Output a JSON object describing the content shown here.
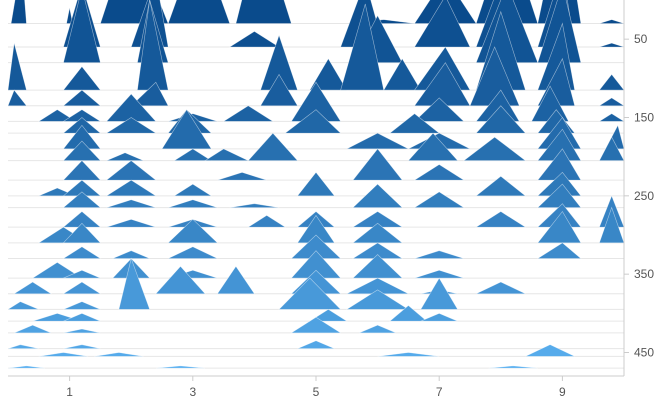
{
  "chart_data": {
    "type": "area",
    "variant": "ridgeline-triangles",
    "title": "",
    "xlabel": "",
    "ylabel": "",
    "x_ticks": [
      "1",
      "3",
      "5",
      "7",
      "9"
    ],
    "y_ticks": [
      "50",
      "150",
      "250",
      "350",
      "450"
    ],
    "xlim": [
      0,
      10
    ],
    "ylim": [
      0,
      480
    ],
    "grid": true,
    "legend": "none",
    "colors": {
      "top": "#0a4b8c",
      "bottom": "#5ab0f0",
      "axis": "#cccccc",
      "grid": "#e6e6e6",
      "label": "#555555"
    },
    "baselines": [
      30,
      60,
      80,
      115,
      135,
      155,
      170,
      190,
      205,
      230,
      250,
      265,
      290,
      310,
      330,
      355,
      375,
      395,
      410,
      425,
      445,
      455,
      470
    ],
    "series": [
      {
        "baseline": 30,
        "peaks": [
          [
            0.05,
            0.22,
            0.3,
            80
          ],
          [
            0.95,
            1.0,
            1.05,
            20
          ],
          [
            1.5,
            2.0,
            2.6,
            120
          ],
          [
            2.6,
            3.1,
            3.6,
            110
          ],
          [
            3.7,
            4.1,
            4.6,
            125
          ],
          [
            5.6,
            6.1,
            6.6,
            5
          ],
          [
            6.6,
            7.1,
            7.6,
            60
          ],
          [
            7.6,
            8.1,
            8.6,
            120
          ],
          [
            8.6,
            9.0,
            9.3,
            150
          ],
          [
            9.6,
            9.8,
            10.0,
            5
          ]
        ]
      },
      {
        "baseline": 60,
        "peaks": [
          [
            0.9,
            1.2,
            1.5,
            80
          ],
          [
            2.0,
            2.4,
            2.6,
            90
          ],
          [
            3.6,
            4.0,
            4.4,
            20
          ],
          [
            5.4,
            5.8,
            6.1,
            85
          ],
          [
            6.6,
            7.1,
            7.5,
            65
          ],
          [
            7.6,
            8.0,
            8.4,
            85
          ],
          [
            8.6,
            9.0,
            9.2,
            100
          ],
          [
            9.6,
            9.8,
            10.0,
            5
          ]
        ]
      },
      {
        "baseline": 80,
        "peaks": [
          [
            0.9,
            1.2,
            1.5,
            95
          ],
          [
            2.1,
            2.3,
            2.6,
            80
          ],
          [
            5.6,
            6.0,
            6.4,
            60
          ],
          [
            7.6,
            8.1,
            8.6,
            100
          ],
          [
            8.6,
            9.0,
            9.3,
            100
          ]
        ]
      },
      {
        "baseline": 115,
        "peaks": [
          [
            0.0,
            0.1,
            0.3,
            60
          ],
          [
            0.9,
            1.2,
            1.5,
            30
          ],
          [
            2.1,
            2.3,
            2.6,
            115
          ],
          [
            4.1,
            4.4,
            4.7,
            70
          ],
          [
            4.9,
            5.2,
            5.5,
            40
          ],
          [
            5.4,
            5.8,
            6.1,
            110
          ],
          [
            6.1,
            6.4,
            6.7,
            40
          ],
          [
            6.6,
            7.1,
            7.5,
            55
          ],
          [
            7.6,
            8.0,
            8.4,
            100
          ],
          [
            8.6,
            9.0,
            9.2,
            85
          ],
          [
            9.6,
            9.8,
            10.0,
            20
          ]
        ]
      },
      {
        "baseline": 135,
        "peaks": [
          [
            0.0,
            0.1,
            0.3,
            20
          ],
          [
            0.9,
            1.2,
            1.5,
            20
          ],
          [
            2.0,
            2.4,
            2.6,
            30
          ],
          [
            4.1,
            4.4,
            4.7,
            40
          ],
          [
            6.6,
            7.1,
            7.5,
            55
          ],
          [
            7.5,
            7.9,
            8.3,
            75
          ],
          [
            8.6,
            9.0,
            9.2,
            60
          ],
          [
            9.6,
            9.8,
            10.0,
            10
          ]
        ]
      },
      {
        "baseline": 155,
        "peaks": [
          [
            0.5,
            0.8,
            1.1,
            15
          ],
          [
            0.9,
            1.2,
            1.5,
            15
          ],
          [
            1.6,
            2.0,
            2.4,
            35
          ],
          [
            2.6,
            3.0,
            3.4,
            10
          ],
          [
            3.5,
            3.9,
            4.3,
            20
          ],
          [
            4.6,
            5.0,
            5.4,
            50
          ],
          [
            6.6,
            7.0,
            7.4,
            30
          ],
          [
            7.6,
            8.0,
            8.3,
            40
          ],
          [
            8.5,
            8.8,
            9.1,
            45
          ],
          [
            9.6,
            9.8,
            10.0,
            10
          ]
        ]
      },
      {
        "baseline": 170,
        "peaks": [
          [
            0.9,
            1.2,
            1.5,
            20
          ],
          [
            1.6,
            2.0,
            2.4,
            20
          ],
          [
            2.6,
            2.9,
            3.3,
            30
          ],
          [
            4.5,
            5.0,
            5.4,
            30
          ],
          [
            6.2,
            6.6,
            7.0,
            25
          ],
          [
            7.6,
            8.0,
            8.4,
            35
          ],
          [
            8.6,
            8.9,
            9.2,
            30
          ]
        ]
      },
      {
        "baseline": 190,
        "peaks": [
          [
            0.9,
            1.2,
            1.5,
            30
          ],
          [
            2.5,
            2.9,
            3.3,
            50
          ],
          [
            5.5,
            6.0,
            6.5,
            20
          ],
          [
            6.5,
            7.0,
            7.5,
            20
          ],
          [
            8.6,
            9.0,
            9.3,
            40
          ],
          [
            9.7,
            9.9,
            10.0,
            30
          ]
        ]
      },
      {
        "baseline": 205,
        "peaks": [
          [
            0.9,
            1.2,
            1.5,
            25
          ],
          [
            1.6,
            1.9,
            2.2,
            10
          ],
          [
            2.7,
            3.0,
            3.3,
            15
          ],
          [
            3.2,
            3.5,
            3.9,
            15
          ],
          [
            3.9,
            4.3,
            4.7,
            35
          ],
          [
            6.5,
            6.9,
            7.3,
            35
          ],
          [
            7.4,
            7.9,
            8.4,
            30
          ],
          [
            8.6,
            9.0,
            9.3,
            40
          ],
          [
            9.6,
            9.8,
            10.0,
            30
          ]
        ]
      },
      {
        "baseline": 230,
        "peaks": [
          [
            0.9,
            1.2,
            1.5,
            25
          ],
          [
            1.6,
            2.0,
            2.4,
            25
          ],
          [
            3.4,
            3.8,
            4.2,
            10
          ],
          [
            5.6,
            6.0,
            6.4,
            40
          ],
          [
            6.6,
            7.0,
            7.4,
            20
          ],
          [
            8.6,
            9.0,
            9.3,
            40
          ]
        ]
      },
      {
        "baseline": 250,
        "peaks": [
          [
            0.5,
            0.8,
            1.1,
            10
          ],
          [
            0.9,
            1.2,
            1.5,
            20
          ],
          [
            1.6,
            2.0,
            2.4,
            20
          ],
          [
            2.7,
            3.0,
            3.3,
            15
          ],
          [
            4.7,
            5.0,
            5.3,
            30
          ],
          [
            7.6,
            8.0,
            8.4,
            25
          ],
          [
            8.6,
            9.0,
            9.3,
            30
          ]
        ]
      },
      {
        "baseline": 265,
        "peaks": [
          [
            0.9,
            1.2,
            1.5,
            20
          ],
          [
            1.6,
            2.0,
            2.4,
            10
          ],
          [
            2.6,
            3.0,
            3.4,
            10
          ],
          [
            3.6,
            4.0,
            4.4,
            5
          ],
          [
            5.6,
            6.0,
            6.4,
            30
          ],
          [
            6.6,
            7.0,
            7.4,
            20
          ],
          [
            8.6,
            9.0,
            9.3,
            30
          ]
        ]
      },
      {
        "baseline": 290,
        "peaks": [
          [
            0.9,
            1.2,
            1.5,
            20
          ],
          [
            1.6,
            2.0,
            2.4,
            10
          ],
          [
            2.6,
            3.0,
            3.4,
            10
          ],
          [
            3.9,
            4.2,
            4.5,
            15
          ],
          [
            4.7,
            5.0,
            5.3,
            20
          ],
          [
            5.6,
            6.0,
            6.4,
            20
          ],
          [
            7.6,
            8.0,
            8.4,
            20
          ],
          [
            8.6,
            9.0,
            9.3,
            30
          ],
          [
            9.6,
            9.8,
            10.0,
            40
          ]
        ]
      },
      {
        "baseline": 310,
        "peaks": [
          [
            0.5,
            0.9,
            1.3,
            20
          ],
          [
            0.9,
            1.2,
            1.5,
            25
          ],
          [
            2.6,
            3.0,
            3.4,
            30
          ],
          [
            4.7,
            5.0,
            5.3,
            35
          ],
          [
            5.6,
            6.0,
            6.4,
            25
          ],
          [
            8.6,
            9.0,
            9.3,
            40
          ],
          [
            9.6,
            9.8,
            10.0,
            45
          ]
        ]
      },
      {
        "baseline": 330,
        "peaks": [
          [
            0.9,
            1.2,
            1.5,
            15
          ],
          [
            1.7,
            2.0,
            2.3,
            10
          ],
          [
            2.6,
            3.0,
            3.4,
            15
          ],
          [
            4.6,
            5.0,
            5.4,
            30
          ],
          [
            5.6,
            6.0,
            6.4,
            20
          ],
          [
            6.6,
            7.0,
            7.4,
            10
          ],
          [
            8.6,
            9.0,
            9.3,
            20
          ]
        ]
      },
      {
        "baseline": 355,
        "peaks": [
          [
            0.4,
            0.8,
            1.2,
            20
          ],
          [
            0.9,
            1.2,
            1.5,
            10
          ],
          [
            1.7,
            2.0,
            2.3,
            25
          ],
          [
            2.6,
            3.0,
            3.4,
            10
          ],
          [
            4.6,
            5.0,
            5.4,
            35
          ],
          [
            5.6,
            6.0,
            6.4,
            30
          ],
          [
            6.6,
            7.0,
            7.4,
            10
          ]
        ]
      },
      {
        "baseline": 375,
        "peaks": [
          [
            0.1,
            0.4,
            0.7,
            15
          ],
          [
            0.9,
            1.2,
            1.5,
            15
          ],
          [
            2.4,
            2.8,
            3.2,
            35
          ],
          [
            3.4,
            3.7,
            4.0,
            35
          ],
          [
            4.6,
            5.0,
            5.4,
            30
          ],
          [
            5.5,
            6.0,
            6.5,
            20
          ],
          [
            6.7,
            7.0,
            7.3,
            5
          ],
          [
            7.6,
            8.0,
            8.4,
            15
          ]
        ]
      },
      {
        "baseline": 395,
        "peaks": [
          [
            0.0,
            0.2,
            0.5,
            10
          ],
          [
            0.9,
            1.2,
            1.5,
            10
          ],
          [
            1.8,
            2.0,
            2.3,
            65
          ],
          [
            4.4,
            4.9,
            5.4,
            40
          ],
          [
            5.5,
            6.0,
            6.5,
            25
          ],
          [
            6.7,
            7.0,
            7.3,
            40
          ]
        ]
      },
      {
        "baseline": 410,
        "peaks": [
          [
            0.4,
            0.8,
            1.2,
            10
          ],
          [
            0.9,
            1.2,
            1.5,
            10
          ],
          [
            4.9,
            5.2,
            5.5,
            15
          ],
          [
            6.2,
            6.5,
            6.8,
            20
          ],
          [
            6.7,
            7.0,
            7.3,
            10
          ]
        ]
      },
      {
        "baseline": 425,
        "peaks": [
          [
            0.1,
            0.4,
            0.7,
            10
          ],
          [
            0.9,
            1.2,
            1.5,
            5
          ],
          [
            4.6,
            5.0,
            5.4,
            20
          ],
          [
            5.7,
            6.0,
            6.3,
            10
          ]
        ]
      },
      {
        "baseline": 445,
        "peaks": [
          [
            0.0,
            0.2,
            0.5,
            5
          ],
          [
            0.9,
            1.2,
            1.5,
            5
          ],
          [
            4.7,
            5.0,
            5.3,
            10
          ]
        ]
      },
      {
        "baseline": 455,
        "peaks": [
          [
            0.5,
            0.9,
            1.3,
            5
          ],
          [
            1.4,
            1.8,
            2.2,
            5
          ],
          [
            6.0,
            6.5,
            7.0,
            5
          ],
          [
            8.4,
            8.8,
            9.2,
            15
          ]
        ]
      },
      {
        "baseline": 470,
        "peaks": [
          [
            0.0,
            0.3,
            0.6,
            3
          ],
          [
            2.4,
            2.8,
            3.2,
            3
          ],
          [
            7.8,
            8.2,
            8.6,
            3
          ]
        ]
      }
    ]
  }
}
